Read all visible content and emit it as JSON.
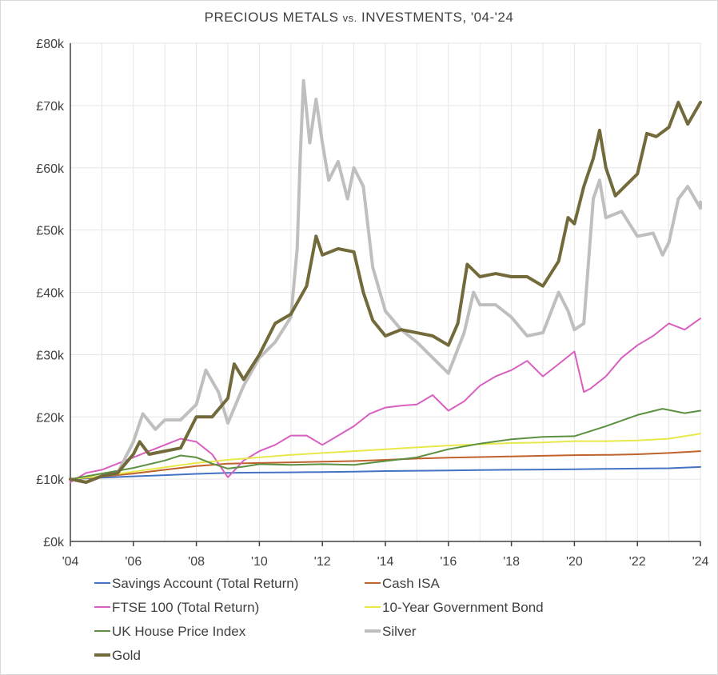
{
  "chart_data": {
    "type": "line",
    "title": "PRECIOUS METALS vs. INVESTMENTS, '04-'24",
    "title_parts": [
      "PRECIOUS METALS ",
      "vs.",
      " INVESTMENTS, '04-'24"
    ],
    "x_ticks": [
      "'04",
      "'06",
      "'08",
      "'10",
      "'12",
      "'14",
      "'16",
      "'18",
      "'20",
      "'22",
      "'24"
    ],
    "y_ticks": [
      "£0k",
      "£10k",
      "£20k",
      "£30k",
      "£40k",
      "£50k",
      "£60k",
      "£70k",
      "£80k"
    ],
    "xlim": [
      2004,
      2024
    ],
    "ylim": [
      0,
      80000
    ],
    "grid": true,
    "legend_position": "bottom",
    "series": [
      {
        "name": "Savings Account (Total Return)",
        "color": "#4472c4",
        "width": 2,
        "points": [
          [
            2004,
            10000
          ],
          [
            2005,
            10250
          ],
          [
            2006,
            10450
          ],
          [
            2007,
            10650
          ],
          [
            2008,
            10850
          ],
          [
            2009,
            11000
          ],
          [
            2010,
            11050
          ],
          [
            2011,
            11100
          ],
          [
            2012,
            11150
          ],
          [
            2013,
            11200
          ],
          [
            2014,
            11300
          ],
          [
            2015,
            11350
          ],
          [
            2016,
            11400
          ],
          [
            2017,
            11450
          ],
          [
            2018,
            11500
          ],
          [
            2019,
            11550
          ],
          [
            2020,
            11600
          ],
          [
            2021,
            11650
          ],
          [
            2022,
            11700
          ],
          [
            2023,
            11750
          ],
          [
            2024,
            11950
          ]
        ]
      },
      {
        "name": "Cash ISA",
        "color": "#c0622c",
        "width": 2,
        "points": [
          [
            2004,
            10000
          ],
          [
            2005,
            10400
          ],
          [
            2006,
            10900
          ],
          [
            2007,
            11500
          ],
          [
            2008,
            12100
          ],
          [
            2009,
            12500
          ],
          [
            2010,
            12600
          ],
          [
            2011,
            12700
          ],
          [
            2012,
            12800
          ],
          [
            2013,
            12900
          ],
          [
            2014,
            13100
          ],
          [
            2015,
            13300
          ],
          [
            2016,
            13450
          ],
          [
            2017,
            13550
          ],
          [
            2018,
            13650
          ],
          [
            2019,
            13750
          ],
          [
            2020,
            13850
          ],
          [
            2021,
            13900
          ],
          [
            2022,
            14000
          ],
          [
            2023,
            14200
          ],
          [
            2024,
            14500
          ]
        ]
      },
      {
        "name": "FTSE 100 (Total Return)",
        "color": "#d85fc0",
        "width": 2,
        "points": [
          [
            2004,
            9500
          ],
          [
            2004.5,
            11000
          ],
          [
            2005,
            11500
          ],
          [
            2005.5,
            12500
          ],
          [
            2006,
            13500
          ],
          [
            2006.5,
            14500
          ],
          [
            2007,
            15500
          ],
          [
            2007.5,
            16500
          ],
          [
            2008,
            16000
          ],
          [
            2008.5,
            14000
          ],
          [
            2009,
            10300
          ],
          [
            2009.5,
            13000
          ],
          [
            2010,
            14500
          ],
          [
            2010.5,
            15500
          ],
          [
            2011,
            17000
          ],
          [
            2011.5,
            17000
          ],
          [
            2012,
            15500
          ],
          [
            2012.5,
            17000
          ],
          [
            2013,
            18500
          ],
          [
            2013.5,
            20500
          ],
          [
            2014,
            21500
          ],
          [
            2014.5,
            21800
          ],
          [
            2015,
            22000
          ],
          [
            2015.5,
            23500
          ],
          [
            2016,
            21000
          ],
          [
            2016.5,
            22500
          ],
          [
            2017,
            25000
          ],
          [
            2017.5,
            26500
          ],
          [
            2018,
            27500
          ],
          [
            2018.5,
            29000
          ],
          [
            2019,
            26500
          ],
          [
            2019.5,
            28500
          ],
          [
            2020,
            30500
          ],
          [
            2020.3,
            24000
          ],
          [
            2020.5,
            24500
          ],
          [
            2021,
            26500
          ],
          [
            2021.5,
            29500
          ],
          [
            2022,
            31500
          ],
          [
            2022.5,
            33000
          ],
          [
            2023,
            35000
          ],
          [
            2023.5,
            34000
          ],
          [
            2024,
            35800
          ]
        ]
      },
      {
        "name": "10-Year Government Bond",
        "color": "#e8e84a",
        "width": 2,
        "points": [
          [
            2004,
            10000
          ],
          [
            2005,
            10500
          ],
          [
            2006,
            11200
          ],
          [
            2007,
            11900
          ],
          [
            2008,
            12600
          ],
          [
            2009,
            13100
          ],
          [
            2010,
            13500
          ],
          [
            2011,
            13900
          ],
          [
            2012,
            14200
          ],
          [
            2013,
            14500
          ],
          [
            2014,
            14800
          ],
          [
            2015,
            15100
          ],
          [
            2016,
            15400
          ],
          [
            2017,
            15600
          ],
          [
            2018,
            15800
          ],
          [
            2019,
            15900
          ],
          [
            2020,
            16100
          ],
          [
            2021,
            16100
          ],
          [
            2022,
            16200
          ],
          [
            2023,
            16500
          ],
          [
            2024,
            17300
          ]
        ]
      },
      {
        "name": "UK House Price Index",
        "color": "#5b9140",
        "width": 2,
        "points": [
          [
            2004,
            10000
          ],
          [
            2005,
            10900
          ],
          [
            2006,
            11800
          ],
          [
            2007,
            13000
          ],
          [
            2007.5,
            13800
          ],
          [
            2008,
            13500
          ],
          [
            2008.5,
            12500
          ],
          [
            2009,
            11700
          ],
          [
            2009.5,
            12000
          ],
          [
            2010,
            12400
          ],
          [
            2011,
            12300
          ],
          [
            2012,
            12400
          ],
          [
            2013,
            12300
          ],
          [
            2014,
            12900
          ],
          [
            2015,
            13500
          ],
          [
            2016,
            14800
          ],
          [
            2017,
            15700
          ],
          [
            2018,
            16400
          ],
          [
            2019,
            16800
          ],
          [
            2020,
            16900
          ],
          [
            2021,
            18500
          ],
          [
            2022,
            20300
          ],
          [
            2022.8,
            21300
          ],
          [
            2023.5,
            20600
          ],
          [
            2024,
            21000
          ]
        ]
      },
      {
        "name": "Silver",
        "color": "#bfbfbf",
        "width": 4,
        "points": [
          [
            2004,
            10000
          ],
          [
            2004.5,
            9500
          ],
          [
            2005,
            10500
          ],
          [
            2005.5,
            11000
          ],
          [
            2006,
            16000
          ],
          [
            2006.3,
            20500
          ],
          [
            2006.7,
            18000
          ],
          [
            2007,
            19500
          ],
          [
            2007.5,
            19500
          ],
          [
            2008,
            22000
          ],
          [
            2008.3,
            27500
          ],
          [
            2008.7,
            24000
          ],
          [
            2009,
            19000
          ],
          [
            2009.5,
            25000
          ],
          [
            2010,
            29500
          ],
          [
            2010.5,
            32000
          ],
          [
            2011,
            36000
          ],
          [
            2011.2,
            47000
          ],
          [
            2011.3,
            62000
          ],
          [
            2011.4,
            74000
          ],
          [
            2011.6,
            64000
          ],
          [
            2011.8,
            71000
          ],
          [
            2012,
            64000
          ],
          [
            2012.2,
            58000
          ],
          [
            2012.5,
            61000
          ],
          [
            2012.8,
            55000
          ],
          [
            2013,
            60000
          ],
          [
            2013.3,
            57000
          ],
          [
            2013.6,
            44000
          ],
          [
            2014,
            37000
          ],
          [
            2014.5,
            34000
          ],
          [
            2015,
            32000
          ],
          [
            2015.5,
            29500
          ],
          [
            2016,
            27000
          ],
          [
            2016.5,
            33500
          ],
          [
            2016.8,
            40000
          ],
          [
            2017,
            38000
          ],
          [
            2017.5,
            38000
          ],
          [
            2018,
            36000
          ],
          [
            2018.5,
            33000
          ],
          [
            2019,
            33500
          ],
          [
            2019.5,
            40000
          ],
          [
            2019.8,
            37000
          ],
          [
            2020,
            34000
          ],
          [
            2020.3,
            35000
          ],
          [
            2020.6,
            55000
          ],
          [
            2020.8,
            58000
          ],
          [
            2021,
            52000
          ],
          [
            2021.5,
            53000
          ],
          [
            2022,
            49000
          ],
          [
            2022.5,
            49500
          ],
          [
            2022.8,
            46000
          ],
          [
            2023,
            48000
          ],
          [
            2023.3,
            55000
          ],
          [
            2023.6,
            57000
          ],
          [
            2024,
            53500
          ],
          [
            2024,
            54500
          ]
        ]
      },
      {
        "name": "Gold",
        "color": "#726a3a",
        "width": 4,
        "points": [
          [
            2004,
            10000
          ],
          [
            2004.5,
            9500
          ],
          [
            2005,
            10500
          ],
          [
            2005.5,
            11000
          ],
          [
            2006,
            14000
          ],
          [
            2006.2,
            16000
          ],
          [
            2006.5,
            14000
          ],
          [
            2007,
            14500
          ],
          [
            2007.5,
            15000
          ],
          [
            2008,
            20000
          ],
          [
            2008.5,
            20000
          ],
          [
            2009,
            23000
          ],
          [
            2009.2,
            28500
          ],
          [
            2009.5,
            26000
          ],
          [
            2010,
            30000
          ],
          [
            2010.5,
            35000
          ],
          [
            2011,
            36500
          ],
          [
            2011.5,
            41000
          ],
          [
            2011.8,
            49000
          ],
          [
            2012,
            46000
          ],
          [
            2012.5,
            47000
          ],
          [
            2013,
            46500
          ],
          [
            2013.3,
            40000
          ],
          [
            2013.6,
            35500
          ],
          [
            2014,
            33000
          ],
          [
            2014.5,
            34000
          ],
          [
            2015,
            33500
          ],
          [
            2015.5,
            33000
          ],
          [
            2016,
            31500
          ],
          [
            2016.3,
            35000
          ],
          [
            2016.6,
            44500
          ],
          [
            2017,
            42500
          ],
          [
            2017.5,
            43000
          ],
          [
            2018,
            42500
          ],
          [
            2018.5,
            42500
          ],
          [
            2019,
            41000
          ],
          [
            2019.5,
            45000
          ],
          [
            2019.8,
            52000
          ],
          [
            2020,
            51000
          ],
          [
            2020.3,
            57000
          ],
          [
            2020.6,
            61500
          ],
          [
            2020.8,
            66000
          ],
          [
            2021,
            60000
          ],
          [
            2021.3,
            55500
          ],
          [
            2021.6,
            57000
          ],
          [
            2022,
            59000
          ],
          [
            2022.3,
            65500
          ],
          [
            2022.6,
            65000
          ],
          [
            2023,
            66500
          ],
          [
            2023.3,
            70500
          ],
          [
            2023.6,
            67000
          ],
          [
            2024,
            70500
          ]
        ]
      }
    ]
  }
}
